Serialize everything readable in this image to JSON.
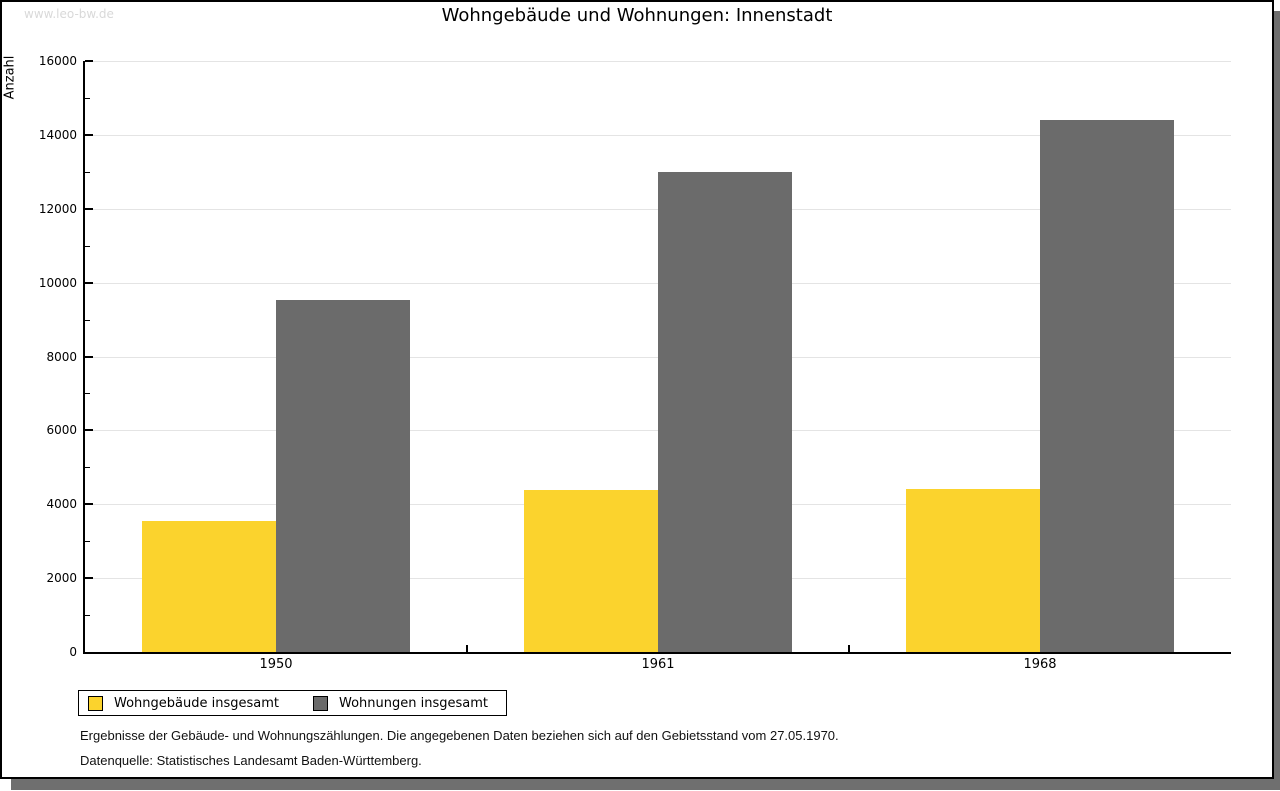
{
  "watermark": "www.leo-bw.de",
  "chart_data": {
    "type": "bar",
    "title": "Wohngebäude und Wohnungen: Innenstadt",
    "ylabel": "Anzahl",
    "xlabel": "",
    "categories": [
      "1950",
      "1961",
      "1968"
    ],
    "series": [
      {
        "name": "Wohngebäude insgesamt",
        "color": "#FBD32D",
        "values": [
          3550,
          4390,
          4410
        ]
      },
      {
        "name": "Wohnungen insgesamt",
        "color": "#6B6B6B",
        "values": [
          9540,
          12990,
          14400
        ]
      }
    ],
    "ylim": [
      0,
      16000
    ],
    "y_major_step": 2000,
    "y_minor_step": 1000,
    "grid": "horizontal-major-gridlines",
    "legend_position": "bottom-left"
  },
  "footer": {
    "note": "Ergebnisse der Gebäude- und Wohnungszählungen. Die angegebenen Daten beziehen sich auf den Gebietsstand vom 27.05.1970.",
    "source": "Datenquelle: Statistisches Landesamt Baden-Württemberg."
  }
}
